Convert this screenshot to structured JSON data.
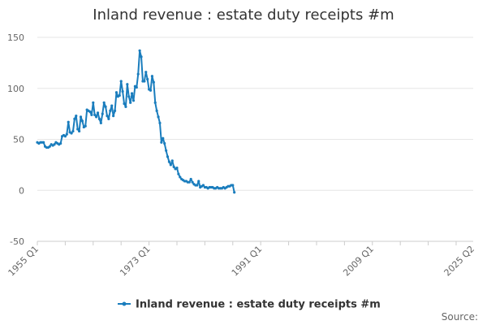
{
  "chart_data": {
    "type": "line",
    "title": "Inland revenue : estate duty receipts #m",
    "xlabel": "",
    "ylabel": "",
    "ylim": [
      -50,
      150
    ],
    "yticks": [
      150,
      100,
      50,
      0,
      -50
    ],
    "xlim": [
      1955.0,
      2025.25
    ],
    "xticks": [
      {
        "label": "1955 Q1",
        "value": 1955.0
      },
      {
        "label": "1973 Q1",
        "value": 1973.0
      },
      {
        "label": "1991 Q1",
        "value": 1991.0
      },
      {
        "label": "2009 Q1",
        "value": 2009.0
      },
      {
        "label": "2025 Q2",
        "value": 2025.25
      }
    ],
    "minor_xticks": [
      1955,
      1959.5,
      1964,
      1968.5,
      1973,
      1977.5,
      1982,
      1986.5,
      1991,
      1995.5,
      2000,
      2004.5,
      2009,
      2013.5,
      2018,
      2022.5
    ],
    "grid": true,
    "legend_position": "bottom",
    "color": "#1a7dbd",
    "series": [
      {
        "name": "Inland revenue : estate duty receipts #m",
        "points": [
          [
            1955.0,
            47
          ],
          [
            1955.25,
            46
          ],
          [
            1955.5,
            47
          ],
          [
            1955.75,
            47
          ],
          [
            1956.0,
            47
          ],
          [
            1956.25,
            43
          ],
          [
            1956.5,
            42
          ],
          [
            1956.75,
            42
          ],
          [
            1957.0,
            43
          ],
          [
            1957.25,
            45
          ],
          [
            1957.5,
            44
          ],
          [
            1957.75,
            45
          ],
          [
            1958.0,
            47
          ],
          [
            1958.25,
            46
          ],
          [
            1958.5,
            45
          ],
          [
            1958.75,
            46
          ],
          [
            1959.0,
            53
          ],
          [
            1959.25,
            54
          ],
          [
            1959.5,
            53
          ],
          [
            1959.75,
            55
          ],
          [
            1960.0,
            67
          ],
          [
            1960.25,
            57
          ],
          [
            1960.5,
            56
          ],
          [
            1960.75,
            58
          ],
          [
            1961.0,
            70
          ],
          [
            1961.25,
            73
          ],
          [
            1961.5,
            60
          ],
          [
            1961.75,
            58
          ],
          [
            1962.0,
            72
          ],
          [
            1962.25,
            68
          ],
          [
            1962.5,
            62
          ],
          [
            1962.75,
            63
          ],
          [
            1963.0,
            79
          ],
          [
            1963.25,
            78
          ],
          [
            1963.5,
            77
          ],
          [
            1963.75,
            74
          ],
          [
            1964.0,
            86
          ],
          [
            1964.25,
            74
          ],
          [
            1964.5,
            72
          ],
          [
            1964.75,
            76
          ],
          [
            1965.0,
            70
          ],
          [
            1965.25,
            66
          ],
          [
            1965.5,
            75
          ],
          [
            1965.75,
            86
          ],
          [
            1966.0,
            82
          ],
          [
            1966.25,
            73
          ],
          [
            1966.5,
            70
          ],
          [
            1966.75,
            78
          ],
          [
            1967.0,
            83
          ],
          [
            1967.25,
            73
          ],
          [
            1967.5,
            78
          ],
          [
            1967.75,
            96
          ],
          [
            1968.0,
            92
          ],
          [
            1968.25,
            93
          ],
          [
            1968.5,
            107
          ],
          [
            1968.75,
            97
          ],
          [
            1969.0,
            85
          ],
          [
            1969.25,
            82
          ],
          [
            1969.5,
            104
          ],
          [
            1969.75,
            92
          ],
          [
            1970.0,
            86
          ],
          [
            1970.25,
            95
          ],
          [
            1970.5,
            88
          ],
          [
            1970.75,
            102
          ],
          [
            1971.0,
            101
          ],
          [
            1971.25,
            114
          ],
          [
            1971.5,
            137
          ],
          [
            1971.75,
            131
          ],
          [
            1972.0,
            107
          ],
          [
            1972.25,
            107
          ],
          [
            1972.5,
            116
          ],
          [
            1972.75,
            109
          ],
          [
            1973.0,
            99
          ],
          [
            1973.25,
            98
          ],
          [
            1973.5,
            112
          ],
          [
            1973.75,
            106
          ],
          [
            1974.0,
            86
          ],
          [
            1974.25,
            78
          ],
          [
            1974.5,
            72
          ],
          [
            1974.75,
            66
          ],
          [
            1975.0,
            47
          ],
          [
            1975.25,
            51
          ],
          [
            1975.5,
            46
          ],
          [
            1975.75,
            39
          ],
          [
            1976.0,
            33
          ],
          [
            1976.25,
            28
          ],
          [
            1976.5,
            25
          ],
          [
            1976.75,
            29
          ],
          [
            1977.0,
            23
          ],
          [
            1977.25,
            21
          ],
          [
            1977.5,
            22
          ],
          [
            1977.75,
            16
          ],
          [
            1978.0,
            13
          ],
          [
            1978.25,
            11
          ],
          [
            1978.5,
            10
          ],
          [
            1978.75,
            9
          ],
          [
            1979.0,
            9
          ],
          [
            1979.25,
            8
          ],
          [
            1979.5,
            8
          ],
          [
            1979.75,
            11
          ],
          [
            1980.0,
            8
          ],
          [
            1980.25,
            6
          ],
          [
            1980.5,
            5
          ],
          [
            1980.75,
            5
          ],
          [
            1981.0,
            9
          ],
          [
            1981.25,
            3
          ],
          [
            1981.5,
            4
          ],
          [
            1981.75,
            5
          ],
          [
            1982.0,
            3
          ],
          [
            1982.25,
            3
          ],
          [
            1982.5,
            2
          ],
          [
            1982.75,
            3
          ],
          [
            1983.0,
            3
          ],
          [
            1983.25,
            3
          ],
          [
            1983.5,
            2
          ],
          [
            1983.75,
            2
          ],
          [
            1984.0,
            3
          ],
          [
            1984.25,
            2
          ],
          [
            1984.5,
            2
          ],
          [
            1984.75,
            2
          ],
          [
            1985.0,
            3
          ],
          [
            1985.25,
            2
          ],
          [
            1985.5,
            3
          ],
          [
            1985.75,
            4
          ],
          [
            1986.0,
            4
          ],
          [
            1986.25,
            5
          ],
          [
            1986.5,
            5
          ],
          [
            1986.75,
            -2
          ]
        ]
      }
    ]
  },
  "source_label": "Source:"
}
